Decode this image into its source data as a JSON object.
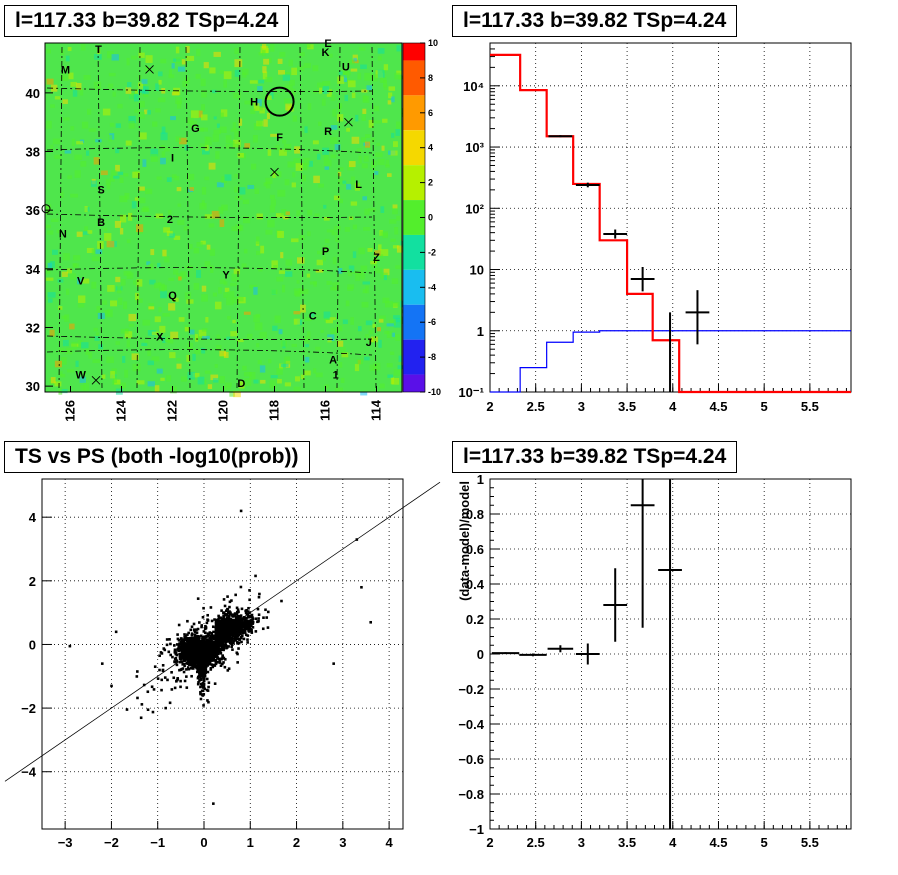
{
  "panels": {
    "map": {
      "title": "l=117.33 b=39.82 TSp=4.24",
      "x_ticks": [
        "126",
        "124",
        "122",
        "120",
        "118",
        "116",
        "114"
      ],
      "y_ticks": [
        "30",
        "32",
        "34",
        "36",
        "38",
        "40"
      ],
      "colorbar_ticks": [
        "10",
        "8",
        "6",
        "4",
        "2",
        "0",
        "-2",
        "-4",
        "-6",
        "-8",
        "-10"
      ],
      "colorbar_colors": [
        "#ff0000",
        "#ff5a00",
        "#ff9a00",
        "#f5d800",
        "#b6f000",
        "#53ee2c",
        "#12e0a0",
        "#19bdf0",
        "#1474f5",
        "#2222f0",
        "#5a10e8"
      ],
      "background_color": "#4fe64c",
      "source_labels": [
        {
          "text": "T",
          "x": 124.9,
          "y": 41.5
        },
        {
          "text": "E",
          "x": 115.9,
          "y": 41.7
        },
        {
          "text": "K",
          "x": 116.0,
          "y": 41.4
        },
        {
          "text": "M",
          "x": 126.2,
          "y": 40.8
        },
        {
          "text": "U",
          "x": 115.2,
          "y": 40.9
        },
        {
          "text": "H",
          "x": 118.8,
          "y": 39.7
        },
        {
          "text": "G",
          "x": 121.1,
          "y": 38.8
        },
        {
          "text": "R",
          "x": 115.9,
          "y": 38.7
        },
        {
          "text": "F",
          "x": 117.8,
          "y": 38.5
        },
        {
          "text": "I",
          "x": 122.0,
          "y": 37.8
        },
        {
          "text": "L",
          "x": 114.7,
          "y": 36.9
        },
        {
          "text": "S",
          "x": 124.8,
          "y": 36.7
        },
        {
          "text": "B",
          "x": 124.8,
          "y": 35.6
        },
        {
          "text": "2",
          "x": 122.1,
          "y": 35.7
        },
        {
          "text": "N",
          "x": 126.3,
          "y": 35.2
        },
        {
          "text": "P",
          "x": 116.0,
          "y": 34.6
        },
        {
          "text": "Z",
          "x": 114.0,
          "y": 34.4
        },
        {
          "text": "V",
          "x": 125.6,
          "y": 33.6
        },
        {
          "text": "Y",
          "x": 119.9,
          "y": 33.8
        },
        {
          "text": "Q",
          "x": 122.0,
          "y": 33.1
        },
        {
          "text": "C",
          "x": 116.5,
          "y": 32.4
        },
        {
          "text": "X",
          "x": 122.5,
          "y": 31.7
        },
        {
          "text": "J",
          "x": 114.3,
          "y": 31.5
        },
        {
          "text": "A",
          "x": 115.7,
          "y": 30.9
        },
        {
          "text": "W",
          "x": 125.6,
          "y": 30.4
        },
        {
          "text": "1",
          "x": 115.6,
          "y": 30.4
        },
        {
          "text": "D",
          "x": 119.3,
          "y": 30.1
        }
      ]
    },
    "spectrum": {
      "title": "l=117.33 b=39.82 TSp=4.24",
      "x_ticks": [
        "2",
        "2.5",
        "3",
        "3.5",
        "4",
        "4.5",
        "5",
        "5.5"
      ],
      "y_ticks": [
        "10⁻¹",
        "1",
        "10",
        "10²",
        "10³",
        "10⁴"
      ]
    },
    "scatter": {
      "title": "TS vs PS (both -log10(prob))",
      "x_ticks": [
        "−3",
        "−2",
        "−1",
        "0",
        "1",
        "2",
        "3",
        "4"
      ],
      "y_ticks": [
        "−4",
        "−2",
        "0",
        "2",
        "4"
      ]
    },
    "residual": {
      "title": "l=117.33 b=39.82 TSp=4.24",
      "ylabel": "(data-model)/model",
      "x_ticks": [
        "2",
        "2.5",
        "3",
        "3.5",
        "4",
        "4.5",
        "5",
        "5.5"
      ],
      "y_ticks": [
        "−1",
        "−0.8",
        "−0.6",
        "−0.4",
        "−0.2",
        "0",
        "0.2",
        "0.4",
        "0.6",
        "0.8",
        "1"
      ]
    }
  },
  "chart_data": [
    {
      "type": "heatmap",
      "title": "l=117.33 b=39.82 TSp=4.24",
      "x_range": [
        127.0,
        113.0
      ],
      "y_range": [
        29.8,
        41.7
      ],
      "z_range": [
        -10,
        10
      ],
      "note_markers": [
        {
          "shape": "circle",
          "x": 117.8,
          "y": 39.7
        }
      ]
    },
    {
      "type": "line",
      "title": "l=117.33 b=39.82 TSp=4.24",
      "log_y": true,
      "xlim": [
        2,
        5.95
      ],
      "ylim": [
        0.1,
        50000
      ],
      "series": [
        {
          "color": "#ff0000",
          "edges": [
            2.0,
            2.33,
            2.62,
            2.91,
            3.2,
            3.5,
            3.78,
            4.07,
            4.35,
            5.95
          ],
          "values": [
            32000,
            8500,
            1500,
            250,
            30,
            4,
            0.7,
            0.1,
            0.1
          ]
        },
        {
          "color": "#0000ff",
          "edges": [
            2.0,
            2.33,
            2.62,
            2.91,
            3.2,
            5.95
          ],
          "values": [
            0.1,
            0.25,
            0.65,
            0.95,
            1.0
          ]
        },
        {
          "color": "#000000",
          "points": [
            {
              "x": 2.77,
              "y": 1500,
              "xerr": 0.13,
              "ylo": 1450,
              "yhi": 1560
            },
            {
              "x": 3.07,
              "y": 240,
              "xerr": 0.13,
              "ylo": 220,
              "yhi": 262
            },
            {
              "x": 3.37,
              "y": 38,
              "xerr": 0.13,
              "ylo": 32,
              "yhi": 45
            },
            {
              "x": 3.67,
              "y": 7,
              "xerr": 0.13,
              "ylo": 4.4,
              "yhi": 11
            },
            {
              "x": 3.97,
              "y": 0.1,
              "xerr": 0.0,
              "ylo": 0.1,
              "yhi": 2
            },
            {
              "x": 4.27,
              "y": 2,
              "xerr": 0.13,
              "ylo": 0.6,
              "yhi": 4.6
            }
          ]
        }
      ]
    },
    {
      "type": "scatter",
      "title": "TS vs PS (both -log10(prob))",
      "xlim": [
        -3.5,
        4.3
      ],
      "ylim": [
        -5.8,
        5.2
      ],
      "line": {
        "slope": 1.0,
        "intercept": 0.0
      }
    },
    {
      "type": "scatter",
      "title": "l=117.33 b=39.82 TSp=4.24",
      "ylabel": "(data-model)/model",
      "xlim": [
        2,
        5.95
      ],
      "ylim": [
        -1,
        1
      ],
      "points": [
        {
          "x": 2.17,
          "y": 0.005,
          "xerr": 0.15,
          "yerr": 0.005
        },
        {
          "x": 2.47,
          "y": -0.005,
          "xerr": 0.15,
          "yerr": 0.008
        },
        {
          "x": 2.77,
          "y": 0.03,
          "xerr": 0.14,
          "yerr": 0.02
        },
        {
          "x": 3.07,
          "y": 0.0,
          "xerr": 0.13,
          "yerr": 0.06
        },
        {
          "x": 3.37,
          "y": 0.28,
          "xerr": 0.13,
          "yerr": 0.21
        },
        {
          "x": 3.67,
          "y": 0.85,
          "xerr": 0.13,
          "yerr": 0.7
        },
        {
          "x": 3.97,
          "y": 0.48,
          "xerr": 0.13,
          "yerr": 1.6
        }
      ]
    }
  ]
}
